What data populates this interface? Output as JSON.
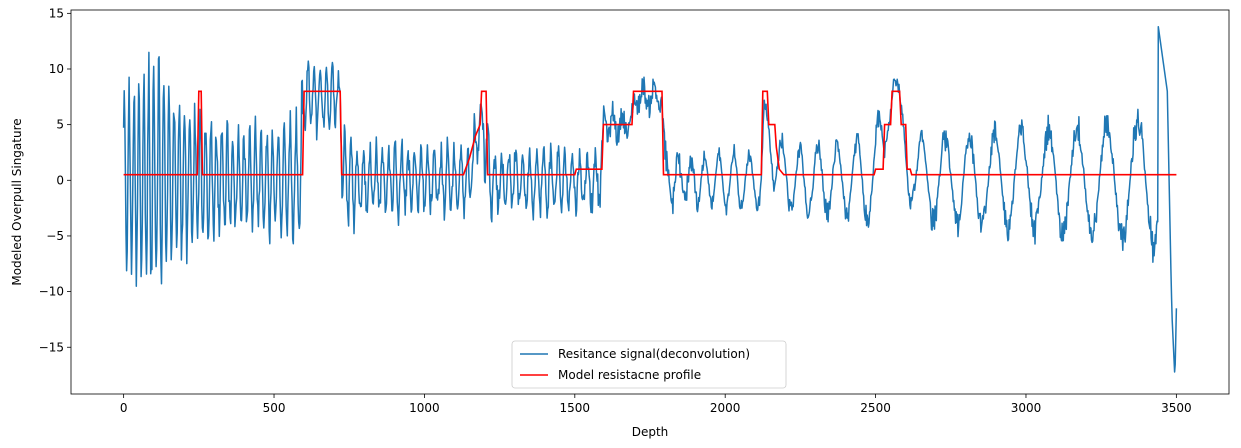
{
  "chart_data": {
    "type": "line",
    "xlabel": "Depth",
    "ylabel": "Modeled Overpull Singature",
    "xlim": [
      -175,
      3675
    ],
    "ylim": [
      -19.2,
      15.3
    ],
    "xticks": [
      0,
      500,
      1000,
      1500,
      2000,
      2500,
      3000,
      3500
    ],
    "yticks": [
      -15,
      -10,
      -5,
      0,
      5,
      10,
      15
    ],
    "grid": false,
    "legend_position": "bottom-center",
    "series": [
      {
        "name": "Resitance signal(deconvolution)",
        "color": "#1f77b4",
        "style": "oscillating",
        "envelope": [
          [
            0,
            8.5
          ],
          [
            40,
            10
          ],
          [
            80,
            12
          ],
          [
            120,
            12.5
          ],
          [
            160,
            9
          ],
          [
            200,
            8
          ],
          [
            300,
            6
          ],
          [
            400,
            5
          ],
          [
            550,
            5.5
          ],
          [
            600,
            7.5
          ],
          [
            650,
            8
          ],
          [
            720,
            6
          ],
          [
            800,
            3.5
          ],
          [
            1000,
            3.5
          ],
          [
            1150,
            3
          ],
          [
            1200,
            4
          ],
          [
            1250,
            3
          ],
          [
            1500,
            3
          ],
          [
            1600,
            3
          ],
          [
            1700,
            3
          ],
          [
            1800,
            3
          ],
          [
            1850,
            2.5
          ],
          [
            2000,
            3
          ],
          [
            2200,
            3.5
          ],
          [
            2500,
            4.5
          ],
          [
            2800,
            5
          ],
          [
            3100,
            6
          ],
          [
            3400,
            7
          ],
          [
            3500,
            10
          ]
        ],
        "baseline": [
          [
            0,
            0
          ],
          [
            590,
            0
          ],
          [
            600,
            7.5
          ],
          [
            720,
            7.5
          ],
          [
            730,
            0
          ],
          [
            1150,
            0
          ],
          [
            1190,
            6
          ],
          [
            1220,
            0
          ],
          [
            1580,
            0
          ],
          [
            1600,
            5
          ],
          [
            1690,
            5
          ],
          [
            1700,
            7.5
          ],
          [
            1790,
            7.5
          ],
          [
            1800,
            0
          ],
          [
            2120,
            0
          ],
          [
            2130,
            6
          ],
          [
            2160,
            2.5
          ],
          [
            2200,
            0
          ],
          [
            2490,
            0
          ],
          [
            2530,
            4
          ],
          [
            2560,
            9
          ],
          [
            2600,
            3
          ],
          [
            2640,
            0
          ],
          [
            3500,
            0
          ]
        ],
        "period_points": [
          [
            0,
            16
          ],
          [
            600,
            20
          ],
          [
            1500,
            24
          ],
          [
            1900,
            45
          ],
          [
            2500,
            70
          ],
          [
            3000,
            90
          ],
          [
            3500,
            110
          ]
        ],
        "tail": [
          [
            3440,
            13.8
          ],
          [
            3470,
            8
          ],
          [
            3485,
            -12
          ],
          [
            3495,
            -17.8
          ],
          [
            3500,
            -11.5
          ]
        ]
      },
      {
        "name": "Model resistacne profile",
        "color": "#ff0000",
        "style": "step",
        "points": [
          [
            0,
            0.5
          ],
          [
            245,
            0.5
          ],
          [
            250,
            8
          ],
          [
            258,
            8
          ],
          [
            262,
            0.5
          ],
          [
            595,
            0.5
          ],
          [
            600,
            8
          ],
          [
            720,
            8
          ],
          [
            725,
            0.5
          ],
          [
            1130,
            0.5
          ],
          [
            1150,
            2
          ],
          [
            1170,
            4
          ],
          [
            1185,
            5
          ],
          [
            1190,
            8
          ],
          [
            1205,
            8
          ],
          [
            1210,
            0.5
          ],
          [
            1500,
            0.5
          ],
          [
            1505,
            1
          ],
          [
            1590,
            1
          ],
          [
            1595,
            5
          ],
          [
            1690,
            5
          ],
          [
            1695,
            8
          ],
          [
            1790,
            8
          ],
          [
            1795,
            0.5
          ],
          [
            2120,
            0.5
          ],
          [
            2125,
            8
          ],
          [
            2140,
            8
          ],
          [
            2145,
            5
          ],
          [
            2165,
            5
          ],
          [
            2170,
            3
          ],
          [
            2180,
            1
          ],
          [
            2195,
            0.5
          ],
          [
            2495,
            0.5
          ],
          [
            2500,
            1
          ],
          [
            2525,
            1
          ],
          [
            2530,
            5
          ],
          [
            2550,
            5
          ],
          [
            2555,
            8
          ],
          [
            2580,
            8
          ],
          [
            2585,
            5
          ],
          [
            2600,
            5
          ],
          [
            2605,
            1
          ],
          [
            2615,
            1
          ],
          [
            2620,
            0.5
          ],
          [
            3500,
            0.5
          ]
        ]
      }
    ]
  }
}
